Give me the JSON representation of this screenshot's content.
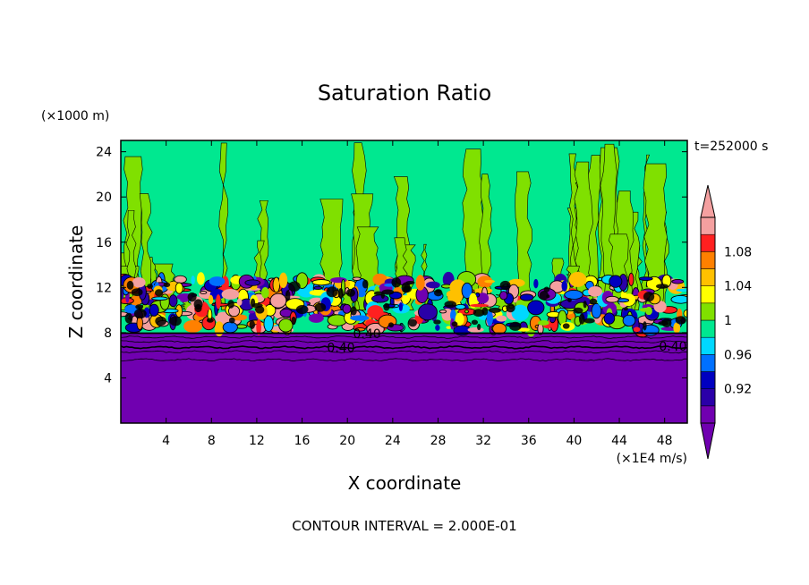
{
  "chart_data": {
    "type": "heatmap",
    "title": "Saturation Ratio",
    "xlabel": "X coordinate",
    "ylabel": "Z coordinate",
    "x_unit": "(×1E4 m/s)",
    "y_unit": "(×1000 m)",
    "time_label": "t=252000 s",
    "footer": "CONTOUR INTERVAL = 2.000E-01",
    "xlim": [
      0,
      50
    ],
    "ylim": [
      0,
      25
    ],
    "x_ticks": [
      4,
      8,
      12,
      16,
      20,
      24,
      28,
      32,
      36,
      40,
      44,
      48
    ],
    "y_ticks": [
      4,
      8,
      12,
      16,
      20,
      24
    ],
    "contour_labels": [
      "0.40",
      "0.40",
      "0.40"
    ],
    "colorbar": {
      "levels": [
        0.92,
        0.94,
        0.96,
        0.98,
        1.0,
        1.02,
        1.04,
        1.06,
        1.08
      ],
      "tick_labels": [
        "0.92",
        "0.96",
        "1",
        "1.04",
        "1.08"
      ],
      "colors": [
        "#7000b0",
        "#2a00a8",
        "#0000c0",
        "#0070ff",
        "#00d8ff",
        "#00e890",
        "#80e000",
        "#ffff00",
        "#ffc000",
        "#ff8000",
        "#ff2020",
        "#f4a0a0"
      ]
    }
  }
}
